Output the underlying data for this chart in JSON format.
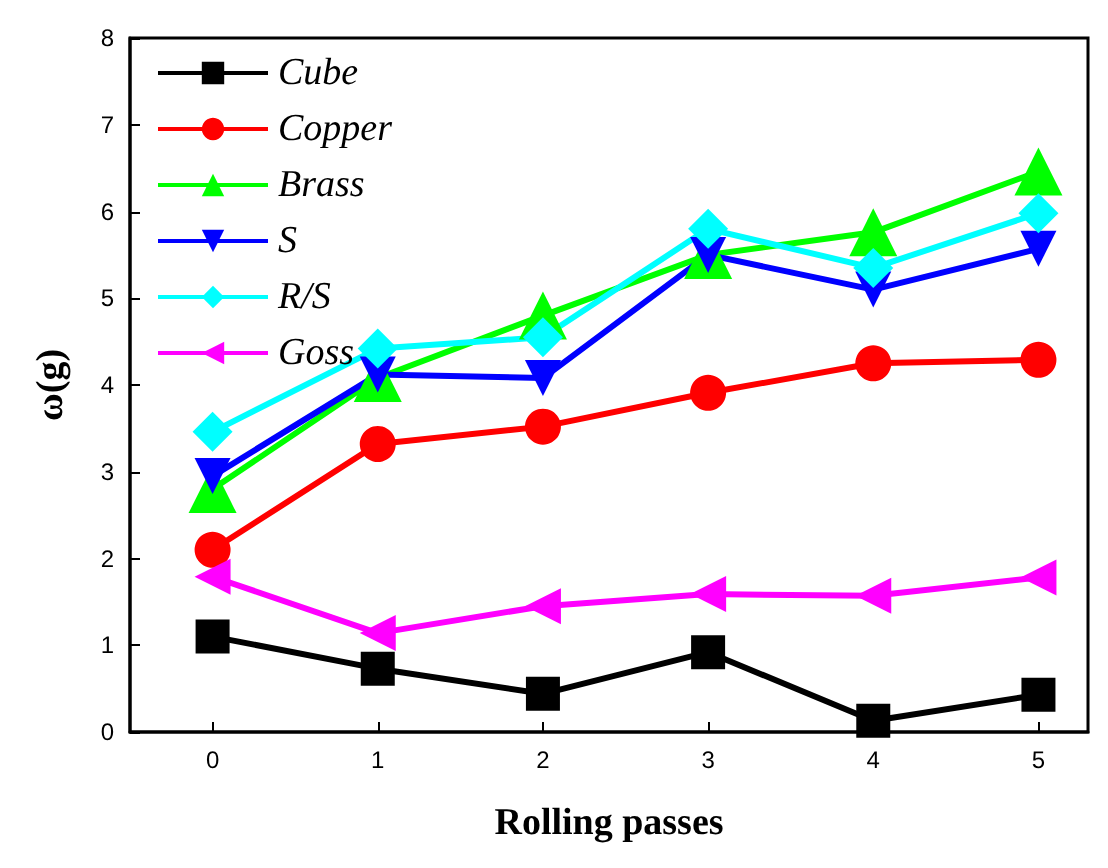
{
  "chart_data": {
    "type": "line",
    "xlabel": "Rolling passes",
    "ylabel": "ω(g)",
    "x": [
      0,
      1,
      2,
      3,
      4,
      5
    ],
    "xlim": [
      -0.5,
      5.3
    ],
    "xticks": [
      0,
      1,
      2,
      3,
      4,
      5
    ],
    "ylim": [
      0,
      8
    ],
    "yticks": [
      0,
      1,
      2,
      3,
      4,
      5,
      6,
      7,
      8
    ],
    "legend": "top left",
    "grid": false,
    "line_style": "solid",
    "series": [
      {
        "name": "Cube",
        "color": "#000000",
        "marker": "square",
        "values": [
          1.1,
          0.73,
          0.44,
          0.92,
          0.13,
          0.43
        ]
      },
      {
        "name": "Copper",
        "color": "#ff0000",
        "marker": "circle",
        "values": [
          2.1,
          3.32,
          3.52,
          3.91,
          4.25,
          4.29
        ]
      },
      {
        "name": "Brass",
        "color": "#00ff00",
        "marker": "triangle",
        "values": [
          2.8,
          4.08,
          4.8,
          5.5,
          5.76,
          6.46
        ]
      },
      {
        "name": "S",
        "color": "#0000ff",
        "marker": "triangle-down",
        "values": [
          2.95,
          4.12,
          4.08,
          5.5,
          5.1,
          5.57
        ]
      },
      {
        "name": "R/S",
        "color": "#00ffff",
        "marker": "diamond",
        "values": [
          3.46,
          4.42,
          4.55,
          5.8,
          5.35,
          5.98
        ]
      },
      {
        "name": "Goss",
        "color": "#ff00ff",
        "marker": "triangle-left",
        "values": [
          1.79,
          1.14,
          1.45,
          1.59,
          1.57,
          1.78
        ]
      }
    ]
  }
}
